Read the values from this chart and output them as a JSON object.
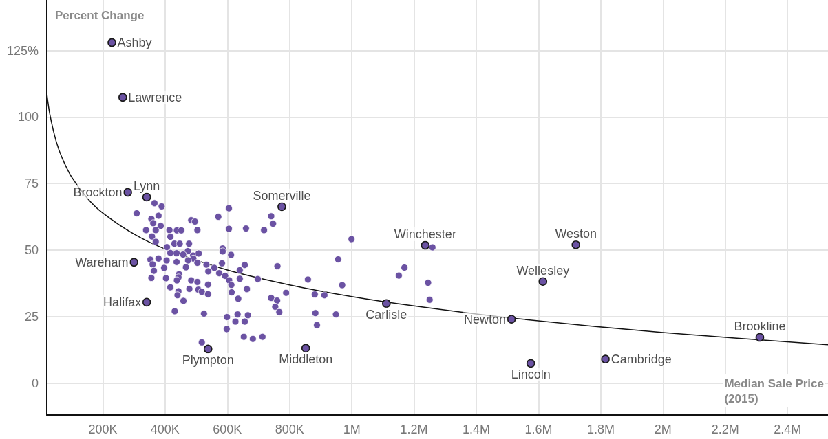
{
  "chart_data": {
    "type": "scatter",
    "xlabel": "Median Sale Price\n(2015)",
    "ylabel": "Percent Change",
    "xlim": [
      20000,
      2530000
    ],
    "ylim": [
      -12,
      144
    ],
    "xticks": [
      {
        "value": 200000,
        "label": "200K"
      },
      {
        "value": 400000,
        "label": "400K"
      },
      {
        "value": 600000,
        "label": "600K"
      },
      {
        "value": 800000,
        "label": "800K"
      },
      {
        "value": 1000000,
        "label": "1M"
      },
      {
        "value": 1200000,
        "label": "1.2M"
      },
      {
        "value": 1400000,
        "label": "1.4M"
      },
      {
        "value": 1600000,
        "label": "1.6M"
      },
      {
        "value": 1800000,
        "label": "1.8M"
      },
      {
        "value": 2000000,
        "label": "2M"
      },
      {
        "value": 2200000,
        "label": "2.2M"
      },
      {
        "value": 2400000,
        "label": "2.4M"
      }
    ],
    "yticks": [
      0,
      25,
      50,
      75,
      100,
      {
        "value": 125,
        "label": "125%"
      }
    ],
    "grid": true,
    "marker": "circle",
    "series": [
      {
        "color": "#6b52a3",
        "x": [
          366000,
          389000,
          309000,
          379000,
          356000,
          362000,
          386000,
          484000,
          496000,
          605000,
          571000,
          339000,
          370000,
          414000,
          438000,
          452000,
          504000,
          605000,
          660000,
          718000,
          741000,
          747000,
          358000,
          417000,
          370000,
          430000,
          447000,
          477000,
          406000,
          473000,
          417000,
          437000,
          458000,
          490000,
          508000,
          491000,
          474000,
          504000,
          353000,
          379000,
          405000,
          437000,
          360000,
          397000,
          364000,
          467000,
          533000,
          583000,
          585000,
          585000,
          612000,
          558000,
          539000,
          574000,
          593000,
          606000,
          613000,
          640000,
          656000,
          640000,
          698000,
          761000,
          356000,
          403000,
          445000,
          443000,
          438000,
          484000,
          504000,
          417000,
          478000,
          507000,
          518000,
          538000,
          538000,
          443000,
          440000,
          459000,
          614000,
          635000,
          663000,
          741000,
          760000,
          754000,
          767000,
          789000,
          431000,
          525000,
          599000,
          633000,
          666000,
          626000,
          656000,
          598000,
          653000,
          682000,
          713000,
          518000,
          999000,
          956000,
          859000,
          969000,
          881000,
          912000,
          883000,
          949000,
          888000,
          1259000,
          1169000,
          1151000,
          1245000,
          1250000
        ],
        "values": [
          67.6,
          66.4,
          63.8,
          62.9,
          61.7,
          60.1,
          59.1,
          61.2,
          60.7,
          65.7,
          62.5,
          57.5,
          57.5,
          57.5,
          57.4,
          57.4,
          57.5,
          58.0,
          58.1,
          57.5,
          62.7,
          59.9,
          55.1,
          55.0,
          53.1,
          52.4,
          52.4,
          52.4,
          51.1,
          49.6,
          48.9,
          48.8,
          48.3,
          47.9,
          48.7,
          46.8,
          46.1,
          45.2,
          46.4,
          46.8,
          46.1,
          45.5,
          44.6,
          43.3,
          42.2,
          43.5,
          44.5,
          45.0,
          50.6,
          49.5,
          48.2,
          43.3,
          42.0,
          41.3,
          40.3,
          38.6,
          36.9,
          42.4,
          44.4,
          39.2,
          39.1,
          43.9,
          39.5,
          39.4,
          40.9,
          39.7,
          38.6,
          38.6,
          38.0,
          36.0,
          35.4,
          35.1,
          34.3,
          37.0,
          33.4,
          34.5,
          33.0,
          30.9,
          34.1,
          31.7,
          35.3,
          32.0,
          31.0,
          28.7,
          26.7,
          33.9,
          27.0,
          26.1,
          24.8,
          25.8,
          25.5,
          23.1,
          23.1,
          20.3,
          17.4,
          16.6,
          17.4,
          15.3,
          54.1,
          46.5,
          38.9,
          36.8,
          33.3,
          33.0,
          26.3,
          25.8,
          21.8,
          51.0,
          43.4,
          40.4,
          37.7,
          31.3
        ]
      },
      {
        "color": "#6b52a3",
        "x": [
          229000,
          264000,
          280000,
          341000,
          775000,
          1236000,
          1720000,
          1614000,
          300000,
          341000,
          1111000,
          1513000,
          2311000,
          1575000,
          1815000,
          538000,
          852000
        ],
        "values": [
          128.0,
          107.4,
          71.7,
          69.9,
          66.3,
          51.8,
          52.0,
          38.2,
          45.4,
          30.4,
          29.9,
          24.0,
          17.2,
          7.4,
          9.0,
          12.8,
          13.1
        ]
      },
      {
        "type": "line",
        "color": "#111111",
        "marker": "none",
        "line_style": "solid",
        "x": [
          20000,
          30000,
          50000,
          70000,
          100000,
          150000,
          200000,
          300000,
          400000,
          600000,
          800000,
          1000000,
          1200000,
          1500000,
          2000000,
          2530000
        ],
        "values": [
          108.8,
          100.9,
          90.9,
          84.4,
          77.4,
          69.5,
          63.9,
          56.0,
          50.4,
          42.5,
          36.9,
          32.5,
          29.0,
          24.6,
          19.0,
          14.4
        ]
      }
    ],
    "annotations": [
      {
        "text": "Ashby",
        "x": 229000,
        "y": 128.0
      },
      {
        "text": "Lawrence",
        "x": 264000,
        "y": 107.4
      },
      {
        "text": "Brockton",
        "x": 280000,
        "y": 71.7
      },
      {
        "text": "Lynn",
        "x": 341000,
        "y": 69.9
      },
      {
        "text": "Somerville",
        "x": 775000,
        "y": 66.3
      },
      {
        "text": "Winchester",
        "x": 1236000,
        "y": 51.8
      },
      {
        "text": "Weston",
        "x": 1720000,
        "y": 52.0
      },
      {
        "text": "Wellesley",
        "x": 1614000,
        "y": 38.2
      },
      {
        "text": "Wareham",
        "x": 300000,
        "y": 45.4
      },
      {
        "text": "Halifax",
        "x": 341000,
        "y": 30.4
      },
      {
        "text": "Carlisle",
        "x": 1111000,
        "y": 29.9
      },
      {
        "text": "Newton",
        "x": 1513000,
        "y": 24.0
      },
      {
        "text": "Brookline",
        "x": 2311000,
        "y": 17.2
      },
      {
        "text": "Lincoln",
        "x": 1575000,
        "y": 7.4
      },
      {
        "text": "Cambridge",
        "x": 1815000,
        "y": 9.0
      },
      {
        "text": "Plympton",
        "x": 538000,
        "y": 12.8
      },
      {
        "text": "Middleton",
        "x": 852000,
        "y": 13.1
      }
    ]
  }
}
